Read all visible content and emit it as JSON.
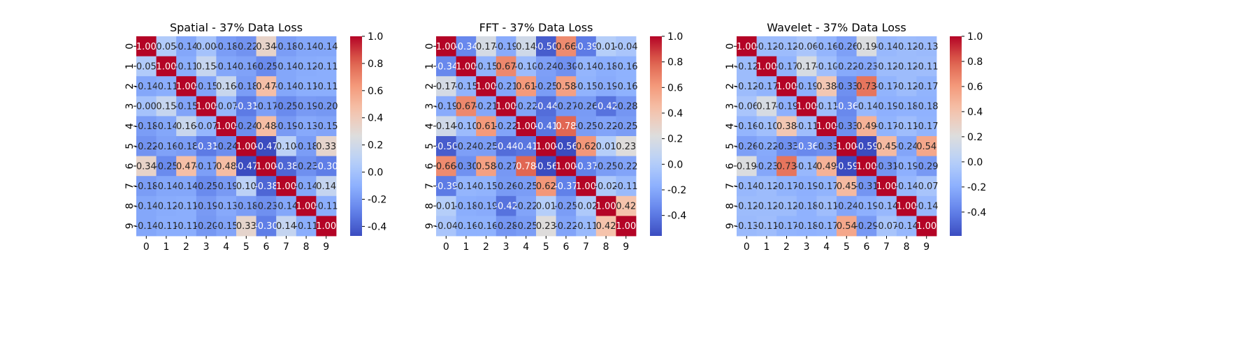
{
  "chart_data": [
    {
      "type": "heatmap",
      "title": "Spatial - 37% Data Loss",
      "x_ticks": [
        "0",
        "1",
        "2",
        "3",
        "4",
        "5",
        "6",
        "7",
        "8",
        "9"
      ],
      "y_ticks": [
        "0",
        "1",
        "2",
        "3",
        "4",
        "5",
        "6",
        "7",
        "8",
        "9"
      ],
      "colorbar": {
        "vmin": -0.47,
        "vmax": 1.0,
        "ticks": [
          -0.4,
          -0.2,
          0.0,
          0.2,
          0.4,
          0.6,
          0.8,
          1.0
        ]
      },
      "values": [
        [
          1.0,
          0.05,
          -0.14,
          0.0,
          -0.18,
          -0.22,
          0.34,
          -0.18,
          -0.14,
          -0.14
        ],
        [
          0.05,
          1.0,
          -0.11,
          0.15,
          -0.14,
          -0.16,
          -0.25,
          -0.14,
          -0.12,
          -0.11
        ],
        [
          -0.14,
          -0.11,
          1.0,
          -0.15,
          0.16,
          -0.18,
          0.47,
          -0.14,
          -0.11,
          -0.11
        ],
        [
          0.0,
          0.15,
          -0.15,
          1.0,
          -0.07,
          -0.31,
          -0.17,
          -0.25,
          -0.19,
          -0.2
        ],
        [
          -0.18,
          -0.14,
          0.16,
          -0.07,
          1.0,
          -0.24,
          0.48,
          -0.19,
          -0.13,
          -0.15
        ],
        [
          -0.22,
          -0.16,
          -0.18,
          -0.31,
          -0.24,
          1.0,
          -0.47,
          0.1,
          -0.18,
          0.33
        ],
        [
          0.34,
          -0.25,
          0.47,
          -0.17,
          0.48,
          -0.47,
          1.0,
          -0.38,
          -0.23,
          -0.3
        ],
        [
          -0.18,
          -0.14,
          -0.14,
          -0.25,
          -0.19,
          0.1,
          -0.38,
          1.0,
          -0.14,
          0.14
        ],
        [
          -0.14,
          -0.12,
          -0.11,
          -0.19,
          -0.13,
          -0.18,
          -0.23,
          -0.14,
          1.0,
          -0.11
        ],
        [
          -0.14,
          -0.11,
          -0.11,
          -0.2,
          -0.15,
          0.33,
          -0.3,
          0.14,
          -0.11,
          1.0
        ]
      ]
    },
    {
      "type": "heatmap",
      "title": "FFT - 37% Data Loss",
      "x_ticks": [
        "0",
        "1",
        "2",
        "3",
        "4",
        "5",
        "6",
        "7",
        "8",
        "9"
      ],
      "y_ticks": [
        "0",
        "1",
        "2",
        "3",
        "4",
        "5",
        "6",
        "7",
        "8",
        "9"
      ],
      "colorbar": {
        "vmin": -0.56,
        "vmax": 1.0,
        "ticks": [
          -0.4,
          -0.2,
          0.0,
          0.2,
          0.4,
          0.6,
          0.8,
          1.0
        ]
      },
      "values": [
        [
          1.0,
          -0.34,
          0.17,
          -0.19,
          0.14,
          -0.5,
          0.66,
          -0.39,
          0.01,
          -0.04
        ],
        [
          -0.34,
          1.0,
          -0.15,
          0.67,
          -0.1,
          -0.24,
          -0.3,
          -0.14,
          -0.18,
          -0.16
        ],
        [
          0.17,
          -0.15,
          1.0,
          -0.21,
          0.61,
          -0.25,
          0.58,
          -0.15,
          -0.19,
          -0.16
        ],
        [
          -0.19,
          0.67,
          -0.21,
          1.0,
          -0.22,
          -0.44,
          -0.27,
          -0.26,
          -0.42,
          -0.28
        ],
        [
          0.14,
          -0.1,
          0.61,
          -0.22,
          1.0,
          -0.41,
          0.78,
          -0.25,
          -0.22,
          -0.25
        ],
        [
          -0.5,
          -0.24,
          -0.25,
          -0.44,
          -0.41,
          1.0,
          -0.56,
          0.62,
          0.01,
          0.23
        ],
        [
          0.66,
          -0.3,
          0.58,
          -0.27,
          0.78,
          -0.56,
          1.0,
          -0.37,
          -0.25,
          -0.22
        ],
        [
          -0.39,
          -0.14,
          -0.15,
          -0.26,
          -0.25,
          0.62,
          -0.37,
          1.0,
          -0.02,
          -0.11
        ],
        [
          0.01,
          -0.18,
          -0.19,
          -0.42,
          -0.22,
          0.01,
          -0.25,
          -0.02,
          1.0,
          0.42
        ],
        [
          -0.04,
          -0.16,
          -0.16,
          -0.28,
          -0.25,
          0.23,
          -0.22,
          -0.11,
          0.42,
          1.0
        ]
      ]
    },
    {
      "type": "heatmap",
      "title": "Wavelet - 37% Data Loss",
      "x_ticks": [
        "0",
        "1",
        "2",
        "3",
        "4",
        "5",
        "6",
        "7",
        "8",
        "9"
      ],
      "y_ticks": [
        "0",
        "1",
        "2",
        "3",
        "4",
        "5",
        "6",
        "7",
        "8",
        "9"
      ],
      "colorbar": {
        "vmin": -0.59,
        "vmax": 1.0,
        "ticks": [
          -0.4,
          -0.2,
          0.0,
          0.2,
          0.4,
          0.6,
          0.8,
          1.0
        ]
      },
      "values": [
        [
          1.0,
          -0.12,
          -0.12,
          -0.06,
          -0.16,
          -0.26,
          0.19,
          -0.14,
          -0.12,
          -0.13
        ],
        [
          -0.12,
          1.0,
          -0.17,
          0.17,
          -0.1,
          -0.22,
          -0.23,
          -0.12,
          -0.12,
          -0.11
        ],
        [
          -0.12,
          -0.17,
          1.0,
          -0.19,
          0.38,
          -0.33,
          0.73,
          -0.17,
          -0.12,
          -0.17
        ],
        [
          -0.06,
          0.17,
          -0.19,
          1.0,
          -0.11,
          -0.36,
          -0.14,
          -0.19,
          -0.18,
          -0.18
        ],
        [
          -0.16,
          -0.1,
          0.38,
          -0.11,
          1.0,
          -0.33,
          0.49,
          -0.17,
          -0.11,
          -0.17
        ],
        [
          -0.26,
          -0.22,
          -0.33,
          -0.36,
          -0.33,
          1.0,
          -0.59,
          0.45,
          -0.24,
          0.54
        ],
        [
          0.19,
          -0.23,
          0.73,
          -0.14,
          0.49,
          -0.59,
          1.0,
          -0.31,
          -0.19,
          -0.29
        ],
        [
          -0.14,
          -0.12,
          -0.17,
          -0.19,
          -0.17,
          0.45,
          -0.31,
          1.0,
          -0.14,
          -0.07
        ],
        [
          -0.12,
          -0.12,
          -0.12,
          -0.18,
          -0.11,
          -0.24,
          -0.19,
          -0.14,
          1.0,
          -0.14
        ],
        [
          -0.13,
          -0.11,
          -0.17,
          -0.18,
          -0.17,
          0.54,
          -0.29,
          -0.07,
          -0.14,
          1.0
        ]
      ]
    }
  ]
}
